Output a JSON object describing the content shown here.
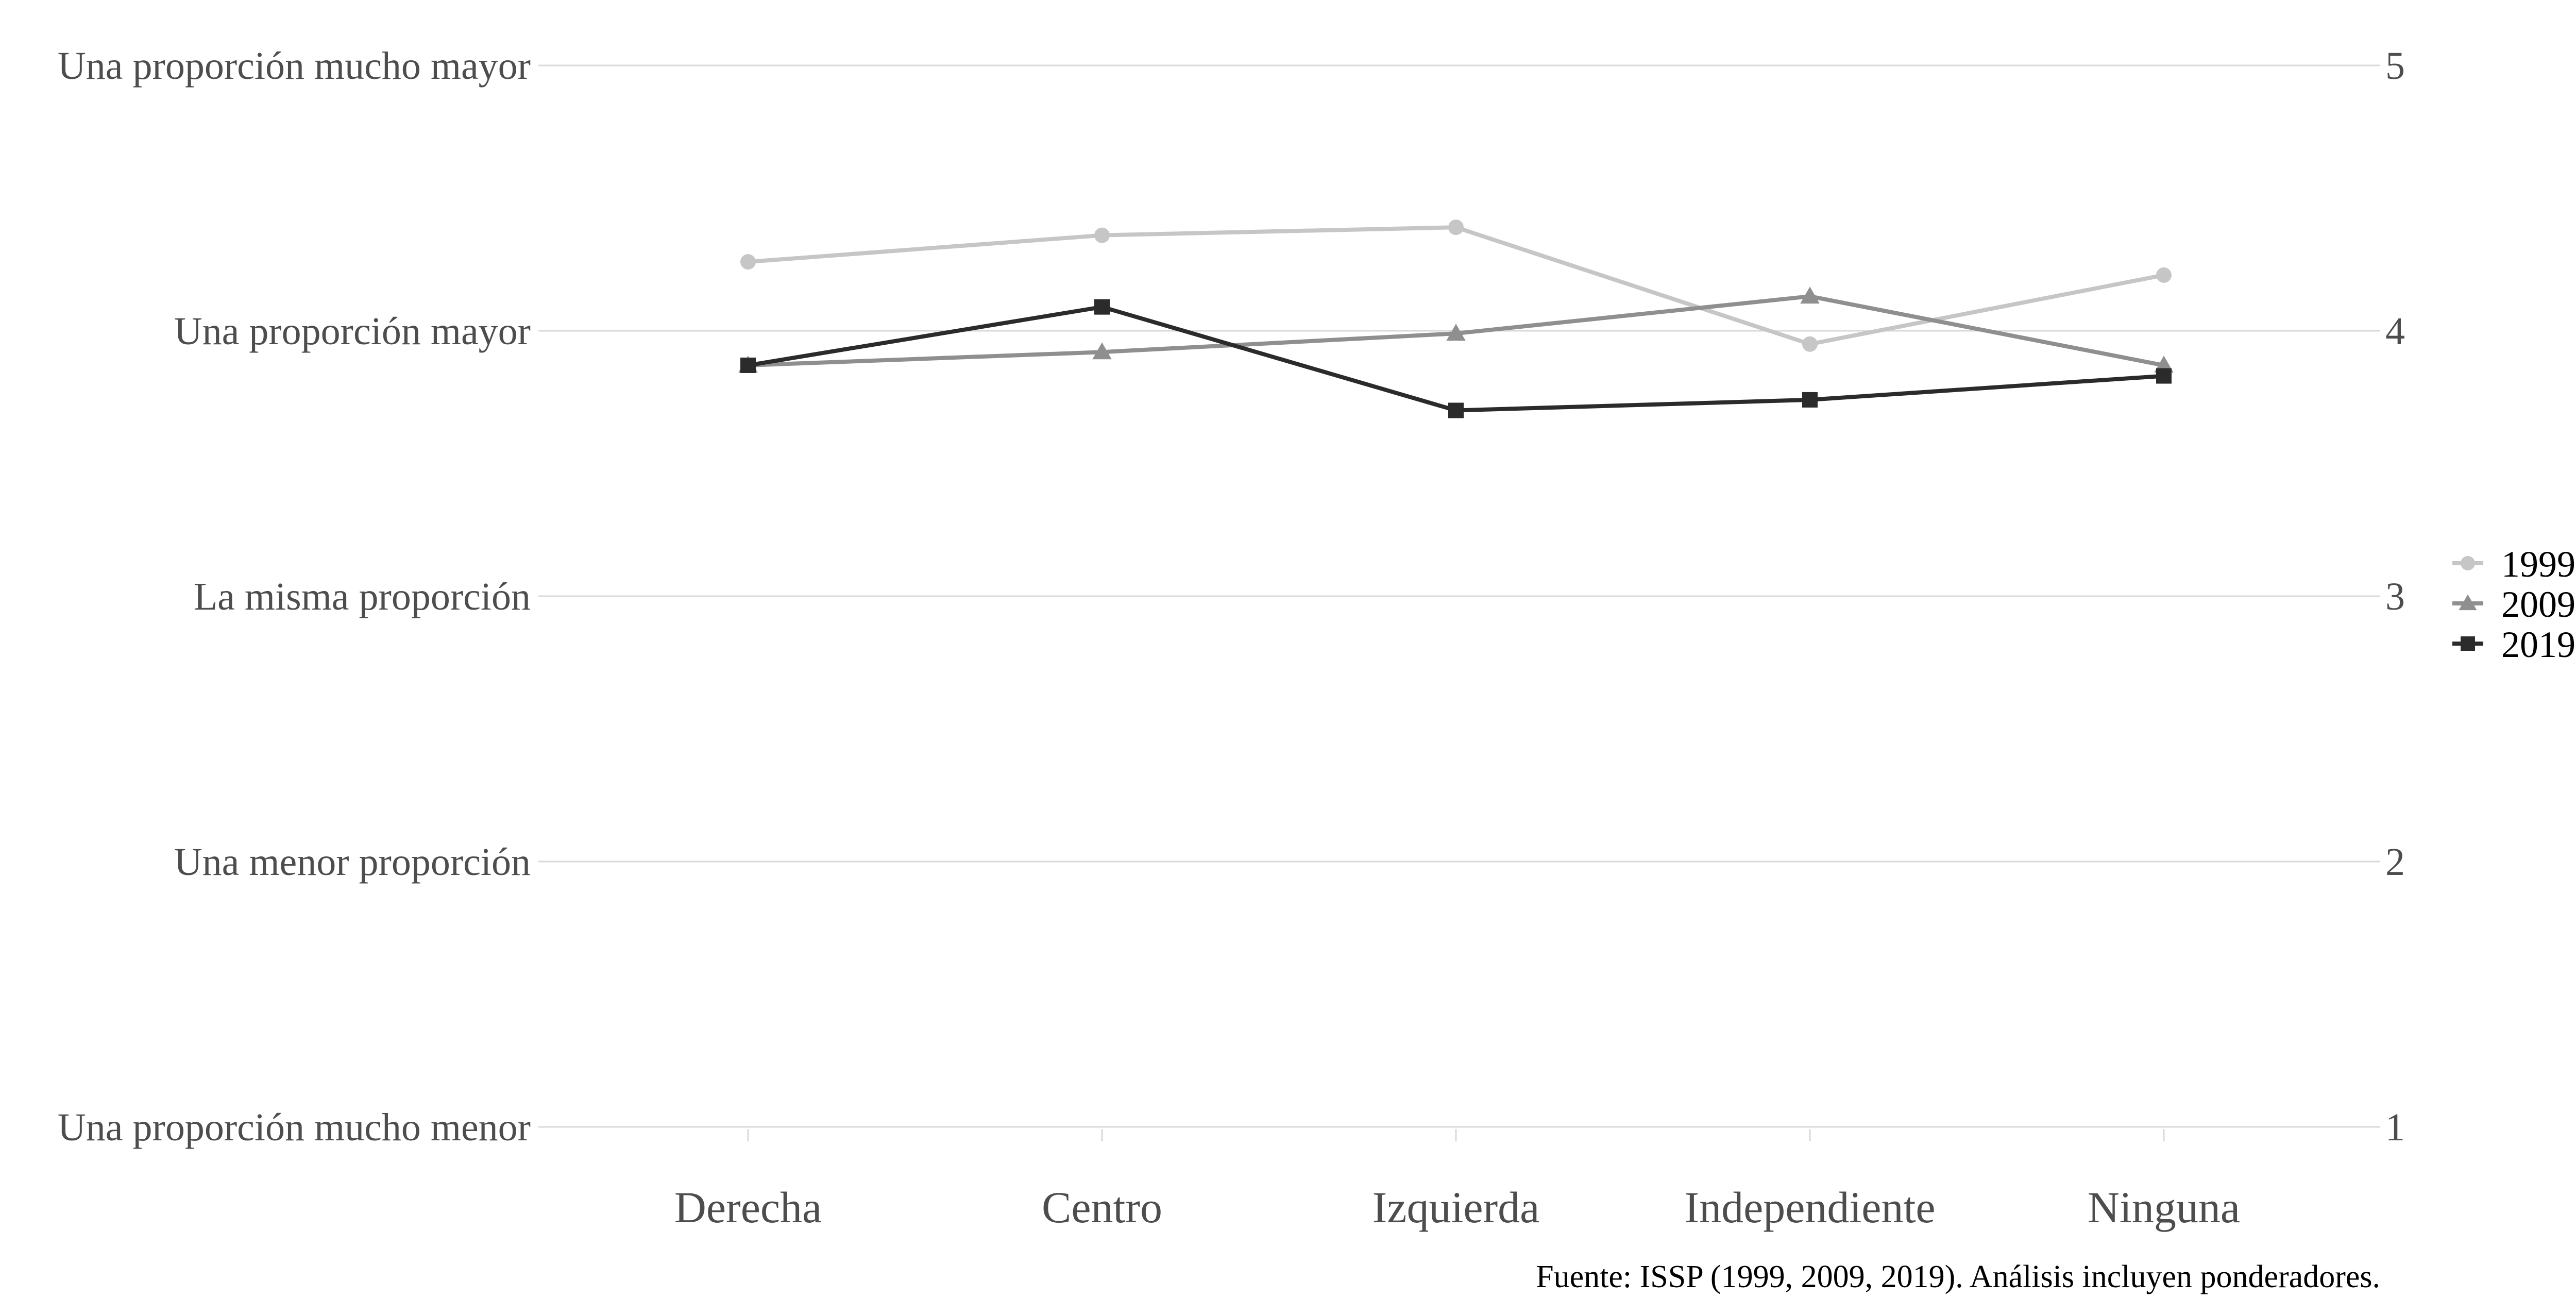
{
  "chart_data": {
    "type": "line",
    "categories": [
      "Derecha",
      "Centro",
      "Izquierda",
      "Independiente",
      "Ninguna"
    ],
    "series": [
      {
        "name": "1999",
        "values": [
          4.26,
          4.36,
          4.39,
          3.95,
          4.21
        ],
        "color": "#c6c6c6",
        "marker": "circle"
      },
      {
        "name": "2009",
        "values": [
          3.87,
          3.92,
          3.99,
          4.13,
          3.87
        ],
        "color": "#8f8f8f",
        "marker": "triangle"
      },
      {
        "name": "2019",
        "values": [
          3.87,
          4.09,
          3.7,
          3.74,
          3.83
        ],
        "color": "#2b2b2b",
        "marker": "square"
      }
    ],
    "ylim": [
      1,
      5
    ],
    "y_ticks": [
      1,
      2,
      3,
      4,
      5
    ],
    "y_tick_labels_left": [
      "Una proporción mucho menor",
      "Una menor proporción",
      "La misma proporción",
      "Una proporción mayor",
      "Una proporción mucho mayor"
    ],
    "y_tick_labels_right": [
      "1",
      "2",
      "3",
      "4",
      "5"
    ],
    "grid": true,
    "legend_position": "right",
    "caption": "Fuente: ISSP (1999, 2009, 2019). Análisis incluyen ponderadores."
  }
}
